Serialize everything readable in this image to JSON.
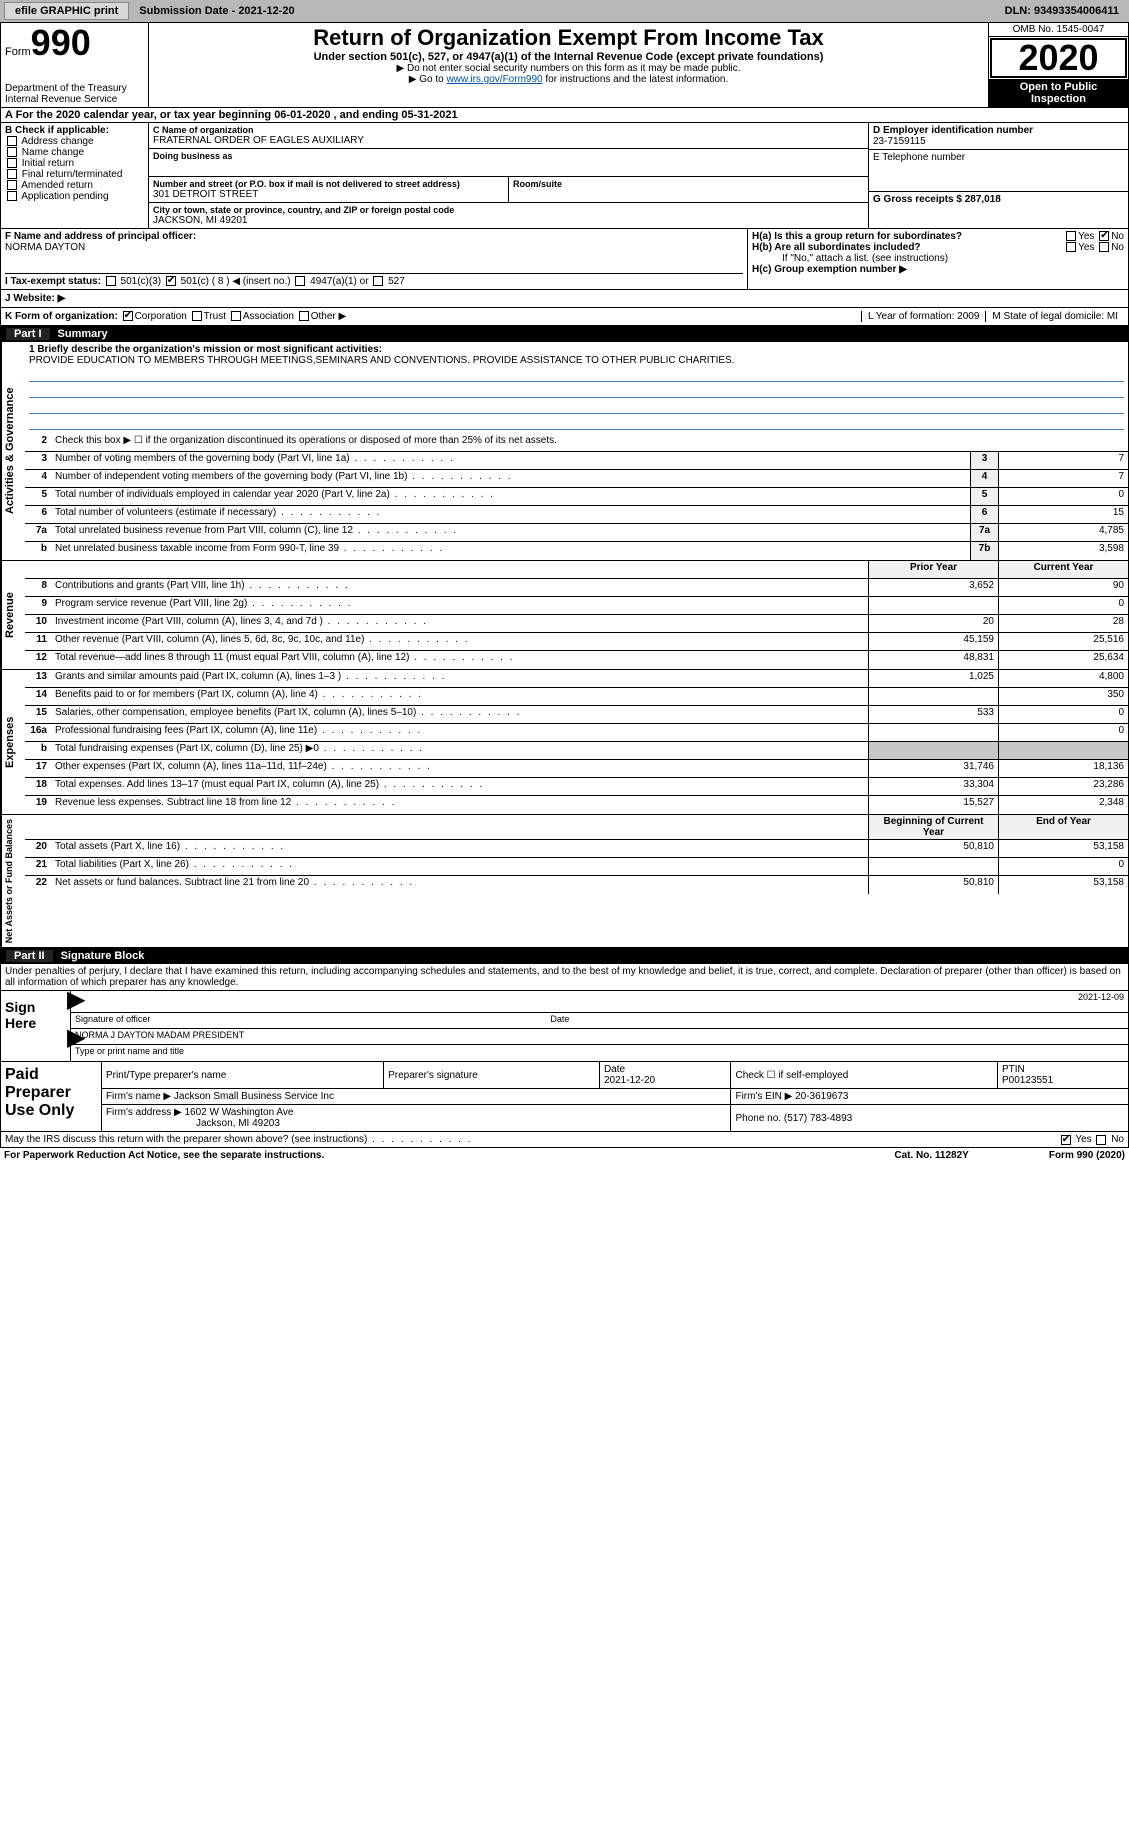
{
  "topbar": {
    "efile": "efile GRAPHIC print",
    "subdate_label": "Submission Date - 2021-12-20",
    "dln": "DLN: 93493354006411"
  },
  "header": {
    "form_word": "Form",
    "form_num": "990",
    "dept": "Department of the Treasury\nInternal Revenue Service",
    "title": "Return of Organization Exempt From Income Tax",
    "sub": "Under section 501(c), 527, or 4947(a)(1) of the Internal Revenue Code (except private foundations)",
    "note1": "▶ Do not enter social security numbers on this form as it may be made public.",
    "note2_pre": "▶ Go to ",
    "note2_link": "www.irs.gov/Form990",
    "note2_post": " for instructions and the latest information.",
    "omb": "OMB No. 1545-0047",
    "year": "2020",
    "open": "Open to Public Inspection"
  },
  "period": "A For the 2020 calendar year, or tax year beginning 06-01-2020    , and ending 05-31-2021",
  "block_b": {
    "title": "B Check if applicable:",
    "opts": [
      "Address change",
      "Name change",
      "Initial return",
      "Final return/terminated",
      "Amended return",
      "Application pending"
    ],
    "c_label": "C Name of organization",
    "c_val": "FRATERNAL ORDER OF EAGLES AUXILIARY",
    "dba_label": "Doing business as",
    "addr_label": "Number and street (or P.O. box if mail is not delivered to street address)",
    "addr_val": "301 DETROIT STREET",
    "room_label": "Room/suite",
    "city_label": "City or town, state or province, country, and ZIP or foreign postal code",
    "city_val": "JACKSON, MI  49201",
    "d_label": "D Employer identification number",
    "d_val": "23-7159115",
    "e_label": "E Telephone number",
    "g_label": "G Gross receipts $ 287,018"
  },
  "fgh": {
    "f_label": "F  Name and address of principal officer:",
    "f_val": "NORMA DAYTON",
    "ha": "H(a)  Is this a group return for subordinates?",
    "hb": "H(b)  Are all subordinates included?",
    "hb_note": "If \"No,\" attach a list. (see instructions)",
    "hc": "H(c)  Group exemption number ▶",
    "yes": "Yes",
    "no": "No"
  },
  "row_i": {
    "label": "I    Tax-exempt status:",
    "o1": "501(c)(3)",
    "o2": "501(c) ( 8 ) ◀ (insert no.)",
    "o3": "4947(a)(1) or",
    "o4": "527"
  },
  "row_j": "J   Website: ▶",
  "row_k": {
    "label": "K Form of organization:",
    "o1": "Corporation",
    "o2": "Trust",
    "o3": "Association",
    "o4": "Other ▶",
    "l": "L Year of formation: 2009",
    "m": "M State of legal domicile: MI"
  },
  "part1": {
    "num": "Part I",
    "title": "Summary"
  },
  "mission": {
    "label": "1   Briefly describe the organization's mission or most significant activities:",
    "text": "PROVIDE EDUCATION TO MEMBERS THROUGH MEETINGS,SEMINARS AND CONVENTIONS. PROVIDE ASSISTANCE TO OTHER PUBLIC CHARITIES."
  },
  "line2": "Check this box ▶ ☐  if the organization discontinued its operations or disposed of more than 25% of its net assets.",
  "gov_rows": [
    {
      "n": "3",
      "d": "Number of voting members of the governing body (Part VI, line 1a)",
      "ln": "3",
      "v": "7"
    },
    {
      "n": "4",
      "d": "Number of independent voting members of the governing body (Part VI, line 1b)",
      "ln": "4",
      "v": "7"
    },
    {
      "n": "5",
      "d": "Total number of individuals employed in calendar year 2020 (Part V, line 2a)",
      "ln": "5",
      "v": "0"
    },
    {
      "n": "6",
      "d": "Total number of volunteers (estimate if necessary)",
      "ln": "6",
      "v": "15"
    },
    {
      "n": "7a",
      "d": "Total unrelated business revenue from Part VIII, column (C), line 12",
      "ln": "7a",
      "v": "4,785"
    },
    {
      "n": "b",
      "d": "Net unrelated business taxable income from Form 990-T, line 39",
      "ln": "7b",
      "v": "3,598"
    }
  ],
  "colhdr": {
    "prior": "Prior Year",
    "current": "Current Year"
  },
  "rev_rows": [
    {
      "n": "8",
      "d": "Contributions and grants (Part VIII, line 1h)",
      "p": "3,652",
      "c": "90"
    },
    {
      "n": "9",
      "d": "Program service revenue (Part VIII, line 2g)",
      "p": "",
      "c": "0"
    },
    {
      "n": "10",
      "d": "Investment income (Part VIII, column (A), lines 3, 4, and 7d )",
      "p": "20",
      "c": "28"
    },
    {
      "n": "11",
      "d": "Other revenue (Part VIII, column (A), lines 5, 6d, 8c, 9c, 10c, and 11e)",
      "p": "45,159",
      "c": "25,516"
    },
    {
      "n": "12",
      "d": "Total revenue—add lines 8 through 11 (must equal Part VIII, column (A), line 12)",
      "p": "48,831",
      "c": "25,634"
    }
  ],
  "exp_rows": [
    {
      "n": "13",
      "d": "Grants and similar amounts paid (Part IX, column (A), lines 1–3 )",
      "p": "1,025",
      "c": "4,800"
    },
    {
      "n": "14",
      "d": "Benefits paid to or for members (Part IX, column (A), line 4)",
      "p": "",
      "c": "350"
    },
    {
      "n": "15",
      "d": "Salaries, other compensation, employee benefits (Part IX, column (A), lines 5–10)",
      "p": "533",
      "c": "0"
    },
    {
      "n": "16a",
      "d": "Professional fundraising fees (Part IX, column (A), line 11e)",
      "p": "",
      "c": "0"
    },
    {
      "n": "b",
      "d": "Total fundraising expenses (Part IX, column (D), line 25) ▶0",
      "p": "shade",
      "c": "shade"
    },
    {
      "n": "17",
      "d": "Other expenses (Part IX, column (A), lines 11a–11d, 11f–24e)",
      "p": "31,746",
      "c": "18,136"
    },
    {
      "n": "18",
      "d": "Total expenses. Add lines 13–17 (must equal Part IX, column (A), line 25)",
      "p": "33,304",
      "c": "23,286"
    },
    {
      "n": "19",
      "d": "Revenue less expenses. Subtract line 18 from line 12",
      "p": "15,527",
      "c": "2,348"
    }
  ],
  "na_hdr": {
    "begin": "Beginning of Current Year",
    "end": "End of Year"
  },
  "na_rows": [
    {
      "n": "20",
      "d": "Total assets (Part X, line 16)",
      "p": "50,810",
      "c": "53,158"
    },
    {
      "n": "21",
      "d": "Total liabilities (Part X, line 26)",
      "p": "",
      "c": "0"
    },
    {
      "n": "22",
      "d": "Net assets or fund balances. Subtract line 21 from line 20",
      "p": "50,810",
      "c": "53,158"
    }
  ],
  "part2": {
    "num": "Part II",
    "title": "Signature Block"
  },
  "sig_decl": "Under penalties of perjury, I declare that I have examined this return, including accompanying schedules and statements, and to the best of my knowledge and belief, it is true, correct, and complete. Declaration of preparer (other than officer) is based on all information of which preparer has any knowledge.",
  "sign": {
    "label": "Sign Here",
    "sig_of": "Signature of officer",
    "date": "Date",
    "date_val": "2021-12-09",
    "name": "NORMA J DAYTON  MADAM PRESIDENT",
    "name_lbl": "Type or print name and title"
  },
  "prep": {
    "label": "Paid Preparer Use Only",
    "h1": "Print/Type preparer's name",
    "h2": "Preparer's signature",
    "h3": "Date",
    "h3v": "2021-12-20",
    "h4": "Check ☐ if self-employed",
    "h5": "PTIN",
    "h5v": "P00123551",
    "firm_lbl": "Firm's name    ▶",
    "firm": "Jackson Small Business Service Inc",
    "ein_lbl": "Firm's EIN ▶",
    "ein": "20-3619673",
    "addr_lbl": "Firm's address ▶",
    "addr1": "1602 W Washington Ave",
    "addr2": "Jackson, MI  49203",
    "phone_lbl": "Phone no.",
    "phone": "(517) 783-4893"
  },
  "discuss": "May the IRS discuss this return with the preparer shown above? (see instructions)",
  "bottom": {
    "pra": "For Paperwork Reduction Act Notice, see the separate instructions.",
    "cat": "Cat. No. 11282Y",
    "form": "Form 990 (2020)"
  },
  "vtabs": {
    "gov": "Activities & Governance",
    "rev": "Revenue",
    "exp": "Expenses",
    "na": "Net Assets or Fund Balances"
  }
}
